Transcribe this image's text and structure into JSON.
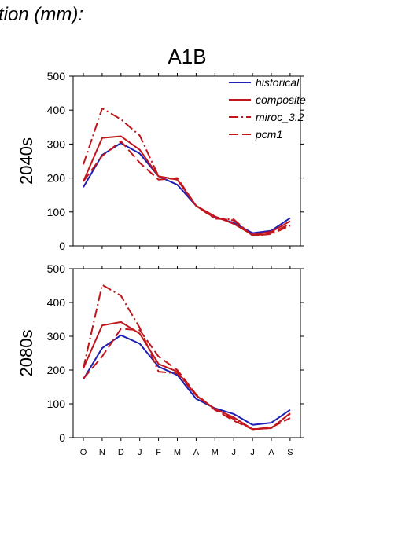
{
  "header_text": "tion (mm):",
  "scenario_title": "A1B",
  "colors": {
    "historical": "#1f1fb4",
    "projection": "#c0161c"
  },
  "legend": [
    {
      "name": "historical",
      "style": "solid",
      "color": "#1f1fb4"
    },
    {
      "name": "composite",
      "style": "solid",
      "color": "#c0161c"
    },
    {
      "name": "miroc_3.2",
      "style": "dashdot",
      "color": "#c0161c"
    },
    {
      "name": "pcm1",
      "style": "dashed",
      "color": "#c0161c"
    }
  ],
  "chart_data": [
    {
      "type": "line",
      "panel_label": "2040s",
      "categories": [
        "O",
        "N",
        "D",
        "J",
        "F",
        "M",
        "A",
        "M",
        "J",
        "J",
        "A",
        "S"
      ],
      "ylim": [
        0,
        500
      ],
      "yticks": [
        0,
        100,
        200,
        300,
        400,
        500
      ],
      "grid": false,
      "legend_position": "top-right",
      "series": [
        {
          "name": "historical",
          "style": "solid",
          "color": "#1f1fb4",
          "values": [
            173,
            268,
            303,
            272,
            205,
            180,
            118,
            85,
            68,
            38,
            45,
            82
          ]
        },
        {
          "name": "composite",
          "style": "solid",
          "color": "#c0161c",
          "values": [
            190,
            318,
            323,
            283,
            205,
            195,
            118,
            87,
            65,
            33,
            42,
            73
          ]
        },
        {
          "name": "miroc_3.2",
          "style": "dashdot",
          "color": "#c0161c",
          "values": [
            240,
            405,
            373,
            325,
            205,
            195,
            118,
            80,
            78,
            30,
            35,
            60
          ]
        },
        {
          "name": "pcm1",
          "style": "dashed",
          "color": "#c0161c",
          "values": [
            190,
            265,
            308,
            245,
            195,
            200,
            118,
            82,
            75,
            30,
            38,
            65
          ]
        }
      ]
    },
    {
      "type": "line",
      "panel_label": "2080s",
      "categories": [
        "O",
        "N",
        "D",
        "J",
        "F",
        "M",
        "A",
        "M",
        "J",
        "J",
        "A",
        "S"
      ],
      "ylim": [
        0,
        500
      ],
      "yticks": [
        0,
        100,
        200,
        300,
        400,
        500
      ],
      "grid": false,
      "series": [
        {
          "name": "historical",
          "style": "solid",
          "color": "#1f1fb4",
          "values": [
            173,
            265,
            303,
            278,
            210,
            185,
            115,
            87,
            70,
            38,
            44,
            82
          ]
        },
        {
          "name": "composite",
          "style": "solid",
          "color": "#c0161c",
          "values": [
            205,
            332,
            342,
            308,
            218,
            195,
            125,
            85,
            60,
            25,
            28,
            72
          ]
        },
        {
          "name": "miroc_3.2",
          "style": "dashdot",
          "color": "#c0161c",
          "values": [
            205,
            452,
            420,
            325,
            195,
            190,
            125,
            82,
            55,
            25,
            28,
            70
          ]
        },
        {
          "name": "pcm1",
          "style": "dashed",
          "color": "#c0161c",
          "values": [
            175,
            240,
            322,
            318,
            240,
            200,
            128,
            83,
            50,
            25,
            30,
            58
          ]
        }
      ]
    }
  ]
}
